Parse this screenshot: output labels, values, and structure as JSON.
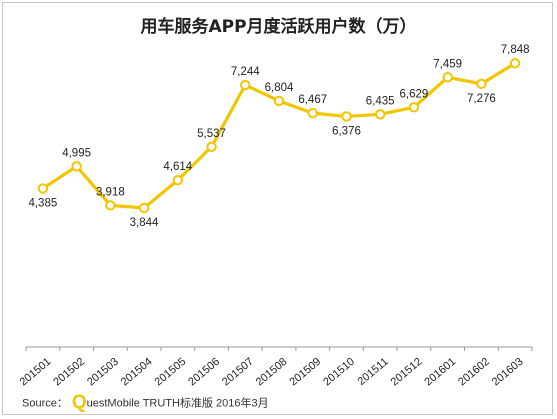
{
  "chart_data": {
    "type": "line",
    "title": "用车服务APP月度活跃用户数（万）",
    "categories": [
      "201501",
      "201502",
      "201503",
      "201504",
      "201505",
      "201506",
      "201507",
      "201508",
      "201509",
      "201510",
      "201511",
      "201512",
      "201601",
      "201602",
      "201603"
    ],
    "series": [
      {
        "values": [
          4385,
          4995,
          3918,
          3844,
          4614,
          5537,
          7244,
          6804,
          6467,
          6376,
          6435,
          6629,
          7459,
          7276,
          7848
        ],
        "labels": [
          "4,385",
          "4,995",
          "3,918",
          "3,844",
          "4,614",
          "5,537",
          "7,244",
          "6,804",
          "6,467",
          "6,376",
          "6,435",
          "6,629",
          "7,459",
          "7,276",
          "7,848"
        ],
        "color": "#f2c500"
      }
    ],
    "ylim": [
      0,
      8600
    ],
    "grid": false,
    "legend": "none",
    "xlabel": "",
    "ylabel": ""
  },
  "footer": {
    "source_label": "Source：",
    "brand_initial": "Q",
    "brand_rest": "uestMobile TRUTH标准版 2016年3月"
  }
}
